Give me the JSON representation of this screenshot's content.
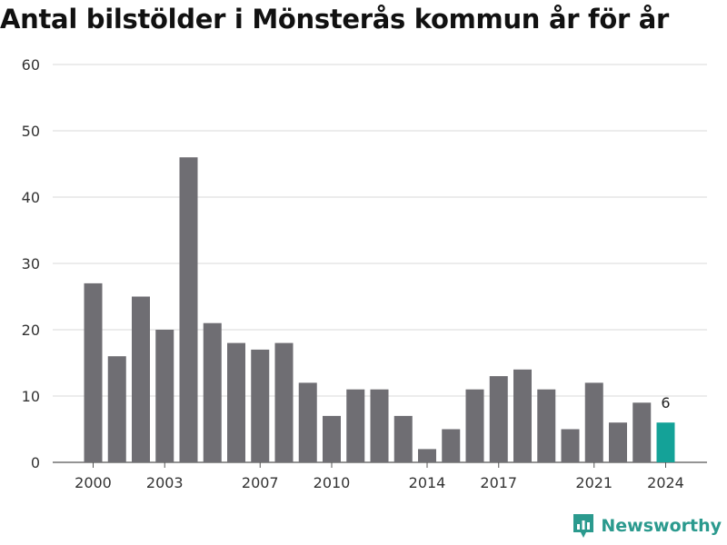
{
  "page": {
    "title": "Antal bilstölder i Mönsterås kommun år för år",
    "brand": "Newsworthy"
  },
  "colors": {
    "bar": "#6f6e73",
    "highlight": "#14a298",
    "grid": "#d9d9d9",
    "tick_text": "#333333",
    "brand": "#2b9a8e"
  },
  "chart_data": {
    "type": "bar",
    "title": "Antal bilstölder i Mönsterås kommun år för år",
    "xlabel": "",
    "ylabel": "",
    "ylim": [
      0,
      60
    ],
    "yticks": [
      0,
      10,
      20,
      30,
      40,
      50,
      60
    ],
    "xtick_labels": [
      "2000",
      "2003",
      "2007",
      "2010",
      "2014",
      "2017",
      "2021",
      "2024"
    ],
    "grid": true,
    "categories": [
      "2000",
      "2001",
      "2002",
      "2003",
      "2004",
      "2005",
      "2006",
      "2007",
      "2008",
      "2009",
      "2010",
      "2011",
      "2012",
      "2013",
      "2014",
      "2015",
      "2016",
      "2017",
      "2018",
      "2019",
      "2020",
      "2021",
      "2022",
      "2023",
      "2024"
    ],
    "values": [
      27,
      16,
      25,
      20,
      46,
      21,
      18,
      17,
      18,
      12,
      7,
      11,
      11,
      7,
      2,
      5,
      11,
      13,
      14,
      11,
      5,
      12,
      6,
      9,
      6
    ],
    "highlight": {
      "category": "2024",
      "label": "6"
    }
  }
}
